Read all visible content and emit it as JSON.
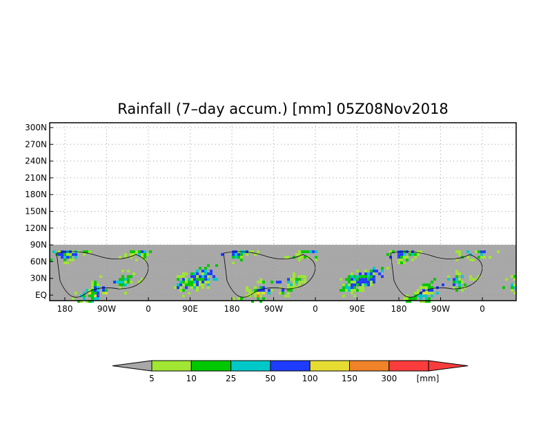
{
  "chart_data": {
    "type": "heatmap",
    "title": "Rainfall (7–day accum.) [mm] 05Z08Nov2018",
    "y_ticks": [
      "300N",
      "270N",
      "240N",
      "210N",
      "180N",
      "150N",
      "120N",
      "90N",
      "60N",
      "30N",
      "EQ"
    ],
    "x_ticks": [
      "180",
      "90W",
      "0",
      "90E",
      "180",
      "90W",
      "0",
      "90E",
      "180",
      "90W",
      "0"
    ],
    "grid": true,
    "no_data_color": "#a8a8a8",
    "colorbar": {
      "levels": [
        "5",
        "10",
        "25",
        "50",
        "100",
        "150",
        "300"
      ],
      "unit": "[mm]",
      "colors": [
        "#a8a8a8",
        "#a0e632",
        "#00c800",
        "#00c8c8",
        "#1e3cff",
        "#e6dc32",
        "#f08228",
        "#fa3c3c"
      ]
    }
  }
}
